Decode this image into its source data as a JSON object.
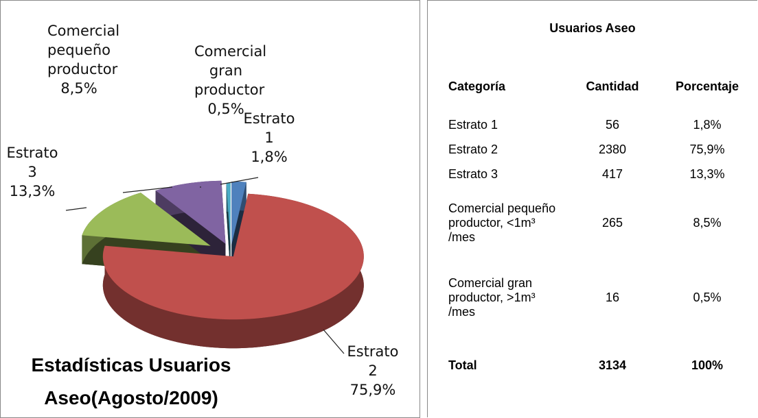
{
  "chart_data": {
    "type": "pie",
    "title": "Estadísticas Usuarios Aseo(Agosto/2009)",
    "categories": [
      "Estrato 1",
      "Estrato 2",
      "Estrato 3",
      "Comercial pequeño productor",
      "Comercial gran productor"
    ],
    "values": [
      1.8,
      75.9,
      13.3,
      8.5,
      0.5
    ],
    "value_labels": [
      "1,8%",
      "75,9%",
      "13,3%",
      "8,5%",
      "0,5%"
    ],
    "colors": [
      "#4f81bd",
      "#c0504d",
      "#9bbb59",
      "#8064a2",
      "#4bacc6"
    ]
  },
  "table": {
    "title": "Usuarios Aseo",
    "header": [
      "Categoría",
      "Cantidad",
      "Porcentaje"
    ],
    "rows": [
      [
        "Estrato 1",
        "56",
        "1,8%"
      ],
      [
        "Estrato 2",
        "2380",
        "75,9%"
      ],
      [
        "Estrato 3",
        "417",
        "13,3%"
      ],
      [
        "Comercial pequeño productor, <1m³ /mes",
        "265",
        "8,5%"
      ],
      [
        "Comercial gran productor, >1m³ /mes",
        "16",
        "0,5%"
      ],
      [
        "Total",
        "3134",
        "100%"
      ]
    ]
  }
}
